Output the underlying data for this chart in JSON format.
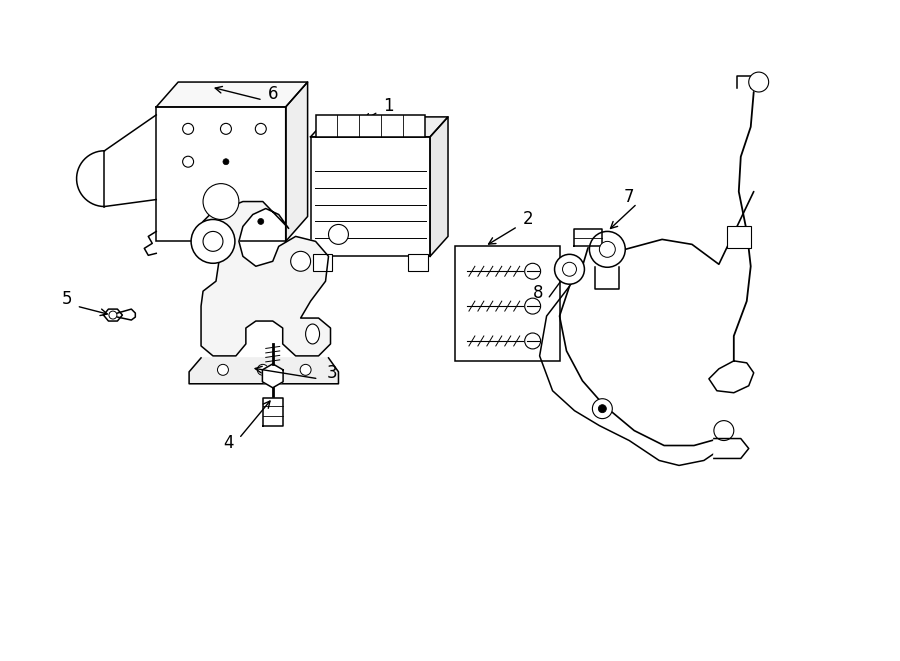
{
  "background_color": "#ffffff",
  "fig_width": 9.0,
  "fig_height": 6.61,
  "dpi": 100,
  "line_color": "#000000",
  "text_color": "#000000",
  "font_size": 12,
  "lw": 1.1
}
